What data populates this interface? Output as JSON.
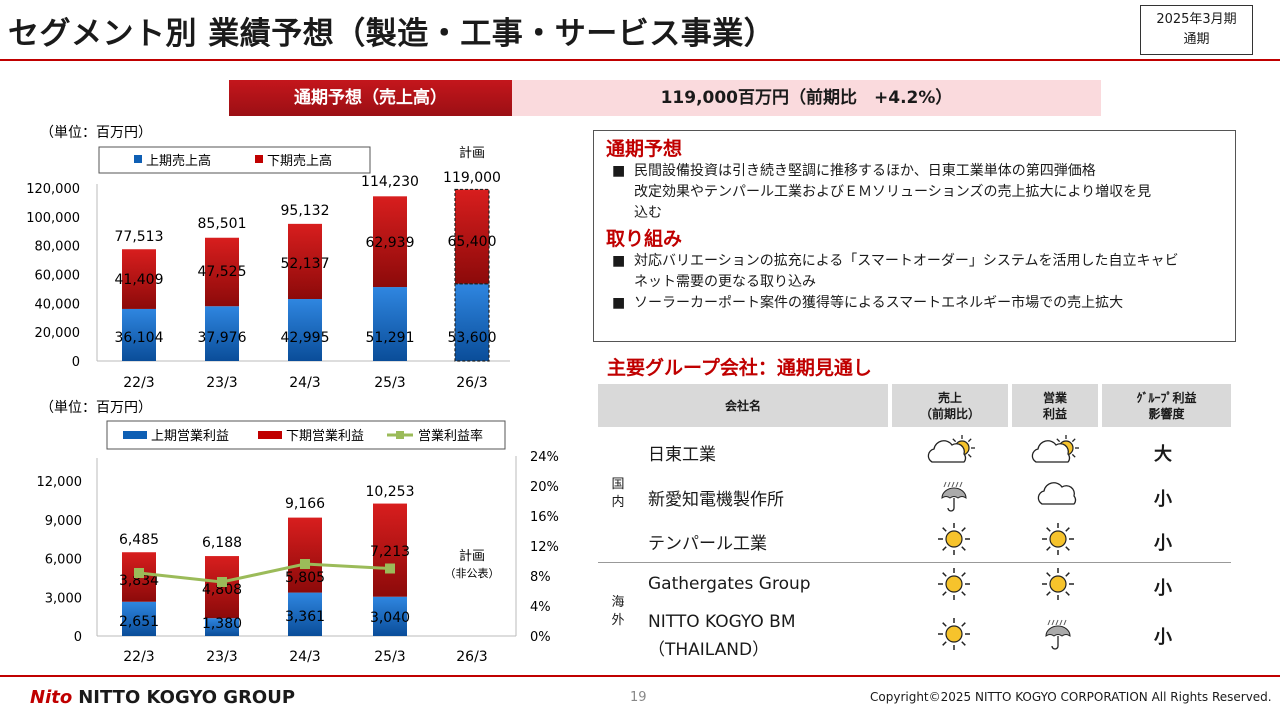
{
  "header": {
    "title": "セグメント別 業績予想（製造・工事・サービス事業）",
    "period_line1": "2025年3月期",
    "period_line2": "通期"
  },
  "banner": {
    "label": "通期予想（売上高）",
    "value": "119,000百万円（前期比　+4.2%）"
  },
  "colors": {
    "blue": "#0e5fb4",
    "red": "#c00000",
    "green": "#9bbb59",
    "accent": "#c00000"
  },
  "chart_data": [
    {
      "type": "bar",
      "unit_label": "（単位：百万円）",
      "categories": [
        "22/3",
        "23/3",
        "24/3",
        "25/3",
        "26/3"
      ],
      "series": [
        {
          "name": "上期売上高",
          "values": [
            36104,
            37976,
            42995,
            51291,
            53600
          ]
        },
        {
          "name": "下期売上高",
          "values": [
            41409,
            47525,
            52137,
            62939,
            65400
          ]
        }
      ],
      "totals": [
        77513,
        85501,
        95132,
        114230,
        119000
      ],
      "value_labels": {
        "h1": [
          "36,104",
          "37,976",
          "42,995",
          "51,291",
          "53,600"
        ],
        "h2": [
          "41,409",
          "47,525",
          "52,137",
          "62,939",
          "65,400"
        ],
        "total": [
          "77,513",
          "85,501",
          "95,132",
          "114,230",
          "119,000"
        ]
      },
      "plan_label": "計画",
      "y_ticks": [
        "0",
        "20,000",
        "40,000",
        "60,000",
        "80,000",
        "100,000",
        "120,000"
      ],
      "ylim": [
        0,
        120000
      ]
    },
    {
      "type": "bar",
      "unit_label": "（単位：百万円）",
      "categories": [
        "22/3",
        "23/3",
        "24/3",
        "25/3",
        "26/3"
      ],
      "series": [
        {
          "name": "上期営業利益",
          "values": [
            2651,
            1380,
            3361,
            3040,
            null
          ]
        },
        {
          "name": "下期営業利益",
          "values": [
            3834,
            4808,
            5805,
            7213,
            null
          ]
        },
        {
          "name": "営業利益率",
          "type": "line",
          "values": [
            8.4,
            7.2,
            9.6,
            9.0,
            null
          ]
        }
      ],
      "totals": [
        6485,
        6188,
        9166,
        10253,
        null
      ],
      "value_labels": {
        "h1": [
          "2,651",
          "1,380",
          "3,361",
          "3,040"
        ],
        "h2": [
          "3,834",
          "4,808",
          "5,805",
          "7,213"
        ],
        "total": [
          "6,485",
          "6,188",
          "9,166",
          "10,253"
        ]
      },
      "plan_label": "計画",
      "plan_note": "（非公表）",
      "y_ticks": [
        "0",
        "3,000",
        "6,000",
        "9,000",
        "12,000"
      ],
      "y2_ticks": [
        "0%",
        "4%",
        "8%",
        "12%",
        "16%",
        "20%",
        "24%"
      ],
      "ylim": [
        0,
        13500
      ],
      "y2lim": [
        0,
        24
      ]
    }
  ],
  "outlook": {
    "heading1": "通期予想",
    "item1_line1": "民間設備投資は引き続き堅調に推移するほか、日東工業単体の第四弾価格",
    "item1_line2": "改定効果やテンパール工業およびＥＭソリューションズの売上拡大により増収を見",
    "item1_line3": "込む",
    "heading2": "取り組み",
    "item2_line1": "対応バリエーションの拡充による「スマートオーダー」システムを活用した自立キャビ",
    "item2_line2": "ネット需要の更なる取り込み",
    "item3": "ソーラーカーポート案件の獲得等によるスマートエネルギー市場での売上拡大",
    "bullet": "■"
  },
  "group": {
    "title": "主要グループ会社：通期見通し",
    "col_company": "会社名",
    "col_sales_1": "売上",
    "col_sales_2": "（前期比）",
    "col_profit_1": "営業",
    "col_profit_2": "利益",
    "col_impact_1": "ｸﾞﾙｰﾌﾟ利益",
    "col_impact_2": "影響度",
    "region_domestic_1": "国",
    "region_domestic_2": "内",
    "region_overseas_1": "海",
    "region_overseas_2": "外",
    "rows": [
      {
        "name": "日東工業",
        "sales": "sun-behind-cloud-icon",
        "profit": "sun-behind-cloud-icon",
        "impact": "大"
      },
      {
        "name": "新愛知電機製作所",
        "sales": "rain-umbrella-icon",
        "profit": "cloud-icon",
        "impact": "小"
      },
      {
        "name": "テンパール工業",
        "sales": "sun-icon",
        "profit": "sun-icon",
        "impact": "小"
      },
      {
        "name": "Gathergates Group",
        "sales": "sun-icon",
        "profit": "sun-icon",
        "impact": "小"
      },
      {
        "name": "NITTO KOGYO BM",
        "name2": "（THAILAND）",
        "sales": "sun-icon",
        "profit": "rain-umbrella-icon",
        "impact": "小"
      }
    ]
  },
  "footer": {
    "logo_mark": "Nito",
    "logo_text": "NITTO KOGYO GROUP",
    "page": "19",
    "copyright": "Copyright©2025 NITTO KOGYO CORPORATION All Rights Reserved."
  }
}
